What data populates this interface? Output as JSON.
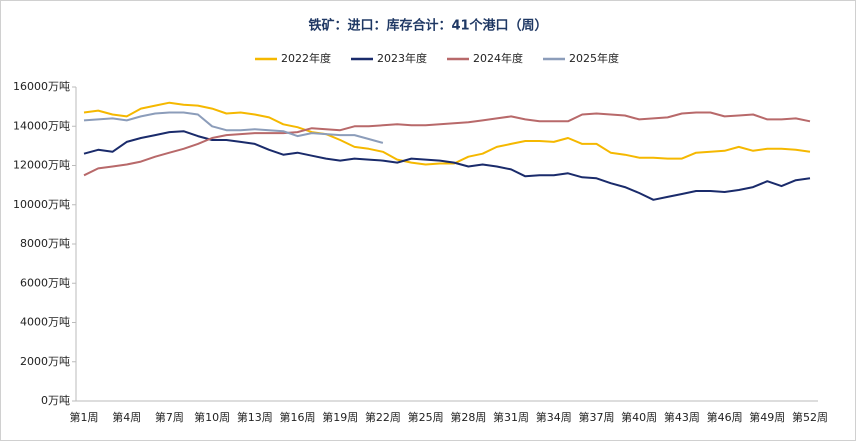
{
  "chart_data": {
    "type": "line",
    "title": "铁矿：进口：库存合计：41个港口（周）",
    "categories": [
      "第1周",
      null,
      null,
      "第4周",
      null,
      null,
      "第7周",
      null,
      null,
      "第10周",
      null,
      null,
      "第13周",
      null,
      null,
      "第16周",
      null,
      null,
      "第19周",
      null,
      null,
      "第22周",
      null,
      null,
      "第25周",
      null,
      null,
      "第28周",
      null,
      null,
      "第31周",
      null,
      null,
      "第34周",
      null,
      null,
      "第37周",
      null,
      null,
      "第40周",
      null,
      null,
      "第43周",
      null,
      null,
      "第46周",
      null,
      null,
      "第49周",
      null,
      null,
      "第52周"
    ],
    "series": [
      {
        "name": "2022年度",
        "color": "#f5b800",
        "values": [
          14700,
          14800,
          14600,
          14500,
          14900,
          15050,
          15200,
          15100,
          15050,
          14900,
          14650,
          14700,
          14600,
          14450,
          14100,
          13950,
          13700,
          13600,
          13300,
          12950,
          12850,
          12700,
          12300,
          12150,
          12050,
          12100,
          12100,
          12450,
          12600,
          12950,
          13100,
          13250,
          13250,
          13200,
          13400,
          13100,
          13100,
          12650,
          12550,
          12400,
          12400,
          12350,
          12350,
          12650,
          12700,
          12750,
          12950,
          12750,
          12850,
          12850,
          12800,
          12700
        ]
      },
      {
        "name": "2023年度",
        "color": "#1a2b6b",
        "values": [
          12600,
          12800,
          12700,
          13200,
          13400,
          13550,
          13700,
          13750,
          13500,
          13300,
          13300,
          13200,
          13100,
          12800,
          12550,
          12650,
          12500,
          12350,
          12250,
          12350,
          12300,
          12250,
          12150,
          12350,
          12300,
          12250,
          12150,
          11950,
          12050,
          11950,
          11800,
          11450,
          11500,
          11500,
          11600,
          11400,
          11350,
          11100,
          10900,
          10600,
          10250,
          10400,
          10550,
          10700,
          10700,
          10650,
          10750,
          10900,
          11200,
          10950,
          11250,
          11350
        ]
      },
      {
        "name": "2024年度",
        "color": "#b8696a",
        "values": [
          11500,
          11850,
          11950,
          12050,
          12200,
          12450,
          12650,
          12850,
          13100,
          13400,
          13550,
          13600,
          13650,
          13650,
          13650,
          13700,
          13900,
          13850,
          13800,
          14000,
          14000,
          14050,
          14100,
          14050,
          14050,
          14100,
          14150,
          14200,
          14300,
          14400,
          14500,
          14350,
          14250,
          14250,
          14250,
          14600,
          14650,
          14600,
          14550,
          14350,
          14400,
          14450,
          14650,
          14700,
          14700,
          14500,
          14550,
          14600,
          14350,
          14350,
          14400,
          14250
        ]
      },
      {
        "name": "2025年度",
        "color": "#8c9dba",
        "values": [
          14300,
          14350,
          14400,
          14300,
          14500,
          14650,
          14700,
          14700,
          14600,
          14000,
          13800,
          13800,
          13850,
          13800,
          13750,
          13500,
          13650,
          13600,
          13550,
          13550,
          13350,
          13150,
          null,
          null,
          null,
          null,
          null,
          null,
          null,
          null,
          null,
          null,
          null,
          null,
          null,
          null,
          null,
          null,
          null,
          null,
          null,
          null,
          null,
          null,
          null,
          null,
          null,
          null,
          null,
          null,
          null,
          null
        ]
      }
    ],
    "ylim": [
      0,
      16000
    ],
    "yticks": [
      {
        "value": 0,
        "label": "0万吨"
      },
      {
        "value": 2000,
        "label": "2000万吨"
      },
      {
        "value": 4000,
        "label": "4000万吨"
      },
      {
        "value": 6000,
        "label": "6000万吨"
      },
      {
        "value": 8000,
        "label": "8000万吨"
      },
      {
        "value": 10000,
        "label": "10000万吨"
      },
      {
        "value": 12000,
        "label": "12000万吨"
      },
      {
        "value": 14000,
        "label": "14000万吨"
      },
      {
        "value": 16000,
        "label": "16000万吨"
      }
    ],
    "grid": false,
    "legend": "top"
  }
}
